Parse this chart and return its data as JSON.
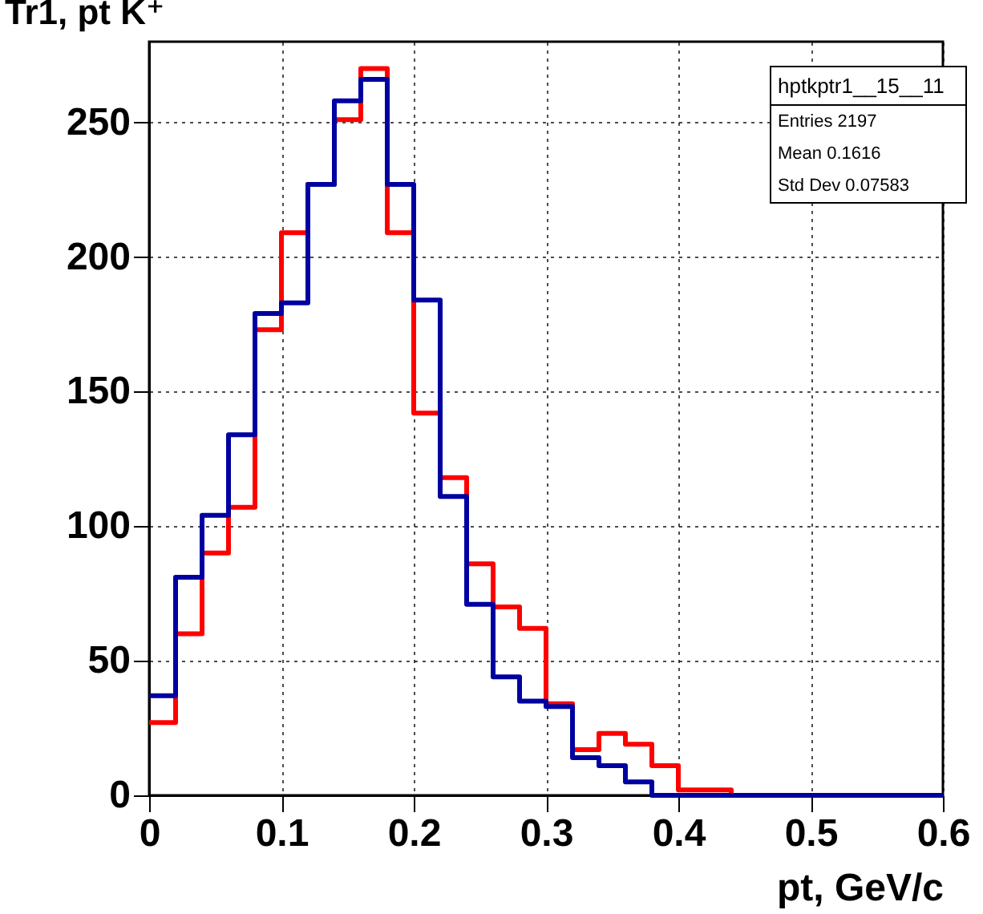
{
  "chart_data": {
    "type": "histogram",
    "title": "Tr1, pt K⁺",
    "xlabel": "pt, GeV/c",
    "bins": [
      0,
      0.02,
      0.04,
      0.06,
      0.08,
      0.1,
      0.12,
      0.14,
      0.16,
      0.18,
      0.2,
      0.22,
      0.24,
      0.26,
      0.28,
      0.3,
      0.32,
      0.34,
      0.36,
      0.38,
      0.4,
      0.42,
      0.44,
      0.46,
      0.48,
      0.5,
      0.52,
      0.54,
      0.56,
      0.58,
      0.6
    ],
    "series": [
      {
        "color": "#ff0000",
        "values": [
          27,
          60,
          90,
          107,
          173,
          209,
          227,
          251,
          270,
          209,
          142,
          118,
          86,
          70,
          62,
          34,
          17,
          23,
          19,
          11,
          2,
          2,
          0,
          0,
          0,
          0,
          0,
          0,
          0,
          0
        ]
      },
      {
        "color": "#0000a0",
        "values": [
          37,
          81,
          104,
          134,
          179,
          183,
          227,
          258,
          266,
          227,
          184,
          111,
          71,
          44,
          35,
          33,
          14,
          11,
          5,
          0,
          0,
          0,
          0,
          0,
          0,
          0,
          0,
          0,
          0,
          0
        ]
      }
    ],
    "annotations": [
      "hptkptr1__15__11",
      "Entries 2197",
      "Mean 0.1616",
      "Std Dev 0.07583"
    ],
    "xlim": [
      0,
      0.6
    ],
    "xticks": [
      0,
      0.1,
      0.2,
      0.3,
      0.4,
      0.5,
      0.6
    ],
    "ylim": [
      0,
      280
    ],
    "yticks": [
      0,
      50,
      100,
      150,
      200,
      250
    ],
    "grid": true
  }
}
